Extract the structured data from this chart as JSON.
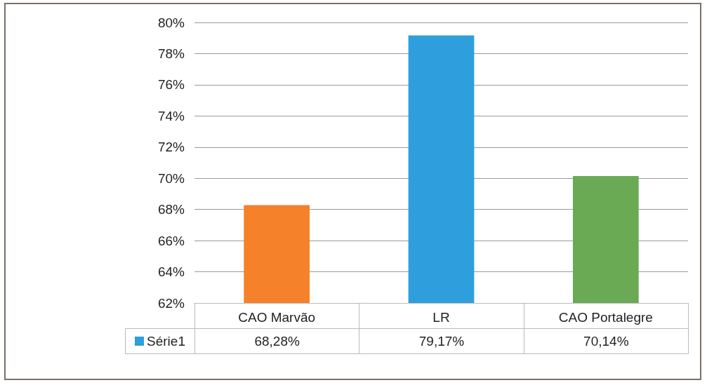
{
  "chart_data": {
    "type": "bar",
    "categories": [
      "CAO Marvão",
      "LR",
      "CAO Portalegre"
    ],
    "series": [
      {
        "name": "Série1",
        "color": "#2e9fdc",
        "colors": [
          "#f5812a",
          "#2e9fdc",
          "#6aaa55"
        ],
        "values": [
          68.28,
          79.17,
          70.14
        ],
        "value_labels": [
          "68,28%",
          "79,17%",
          "70,14%"
        ]
      }
    ],
    "ylim": [
      62,
      80
    ],
    "yticks": [
      {
        "value": 62,
        "label": "62%"
      },
      {
        "value": 64,
        "label": "64%"
      },
      {
        "value": 66,
        "label": "66%"
      },
      {
        "value": 68,
        "label": "68%"
      },
      {
        "value": 70,
        "label": "70%"
      },
      {
        "value": 72,
        "label": "72%"
      },
      {
        "value": 74,
        "label": "74%"
      },
      {
        "value": 76,
        "label": "76%"
      },
      {
        "value": 78,
        "label": "78%"
      },
      {
        "value": 80,
        "label": "80%"
      }
    ],
    "grid": "y",
    "legend": "bottom"
  }
}
